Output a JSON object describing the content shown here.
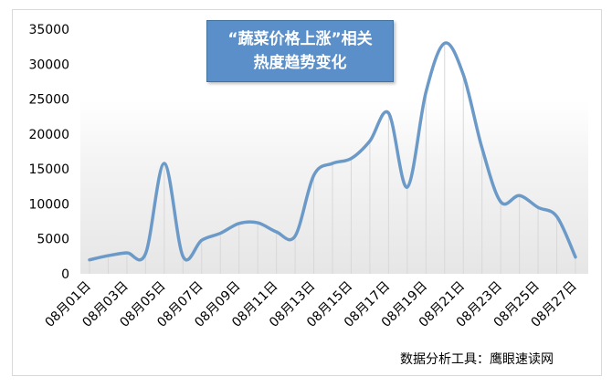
{
  "chart_data": {
    "type": "line",
    "title_line1": "“蔬菜价格上涨”相关",
    "title_line2": "热度趋势变化",
    "xlabel": "",
    "ylabel": "",
    "ylim": [
      0,
      35000
    ],
    "yticks": [
      0,
      5000,
      10000,
      15000,
      20000,
      25000,
      30000,
      35000
    ],
    "ytick_labels": [
      "0",
      "5000",
      "10000",
      "15000",
      "20000",
      "25000",
      "30000",
      "35000"
    ],
    "x": [
      "08月01日",
      "08月02日",
      "08月03日",
      "08月04日",
      "08月05日",
      "08月06日",
      "08月07日",
      "08月08日",
      "08月09日",
      "08月10日",
      "08月11日",
      "08月12日",
      "08月13日",
      "08月14日",
      "08月15日",
      "08月16日",
      "08月17日",
      "08月18日",
      "08月19日",
      "08月20日",
      "08月21日",
      "08月22日",
      "08月23日",
      "08月24日",
      "08月25日",
      "08月26日",
      "08月27日"
    ],
    "xtick_labels": [
      "08月01日",
      "08月03日",
      "08月05日",
      "08月07日",
      "08月09日",
      "08月11日",
      "08月13日",
      "08月15日",
      "08月17日",
      "08月19日",
      "08月21日",
      "08月23日",
      "08月25日",
      "08月27日"
    ],
    "series": [
      {
        "values": [
          2000,
          2600,
          3000,
          2900,
          15800,
          2500,
          4800,
          5800,
          7200,
          7300,
          6000,
          5400,
          14100,
          15800,
          16500,
          19000,
          23000,
          12400,
          26000,
          33000,
          28500,
          18000,
          10300,
          11200,
          9500,
          8200,
          2400
        ],
        "color": "#6c9ac8"
      }
    ],
    "grid": false,
    "legend": "none"
  },
  "footer": {
    "source": "数据分析工具：鹰眼速读网"
  }
}
